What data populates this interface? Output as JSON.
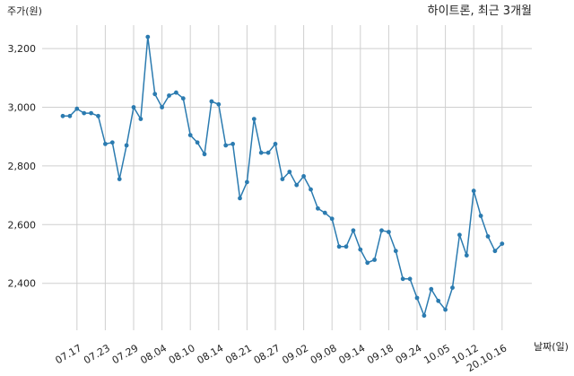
{
  "chart_data": {
    "type": "line",
    "title": "하이트론, 최근 3개월",
    "ylabel": "주가(원)",
    "xlabel": "날짜(일)",
    "ylim": [
      2240,
      3280
    ],
    "yticks": [
      2400,
      2600,
      2800,
      3000,
      3200
    ],
    "ytick_labels": [
      "2,400",
      "2,600",
      "2,800",
      "3,000",
      "3,200"
    ],
    "grid": true,
    "color": "#2b7bb0",
    "x_labels": [
      {
        "i": 2,
        "label": "07.17"
      },
      {
        "i": 6,
        "label": "07.23"
      },
      {
        "i": 10,
        "label": "07.29"
      },
      {
        "i": 14,
        "label": "08.04"
      },
      {
        "i": 18,
        "label": "08.10"
      },
      {
        "i": 22,
        "label": "08.14"
      },
      {
        "i": 26,
        "label": "08.21"
      },
      {
        "i": 30,
        "label": "08.27"
      },
      {
        "i": 34,
        "label": "09.02"
      },
      {
        "i": 38,
        "label": "09.08"
      },
      {
        "i": 42,
        "label": "09.14"
      },
      {
        "i": 46,
        "label": "09.18"
      },
      {
        "i": 50,
        "label": "09.24"
      },
      {
        "i": 54,
        "label": "10.05"
      },
      {
        "i": 58,
        "label": "10.12"
      },
      {
        "i": 62,
        "label": "20.10.16"
      }
    ],
    "values": [
      2970,
      2970,
      2995,
      2980,
      2980,
      2970,
      2875,
      2880,
      2755,
      2870,
      3000,
      2960,
      3240,
      3045,
      3000,
      3040,
      3050,
      3030,
      2905,
      2880,
      2840,
      3020,
      3010,
      2870,
      2875,
      2690,
      2745,
      2960,
      2845,
      2845,
      2875,
      2755,
      2780,
      2735,
      2765,
      2720,
      2655,
      2640,
      2620,
      2525,
      2525,
      2580,
      2515,
      2470,
      2480,
      2580,
      2575,
      2510,
      2415,
      2415,
      2350,
      2290,
      2380,
      2340,
      2310,
      2385,
      2565,
      2495,
      2715,
      2630,
      2560,
      2510,
      2535
    ]
  }
}
